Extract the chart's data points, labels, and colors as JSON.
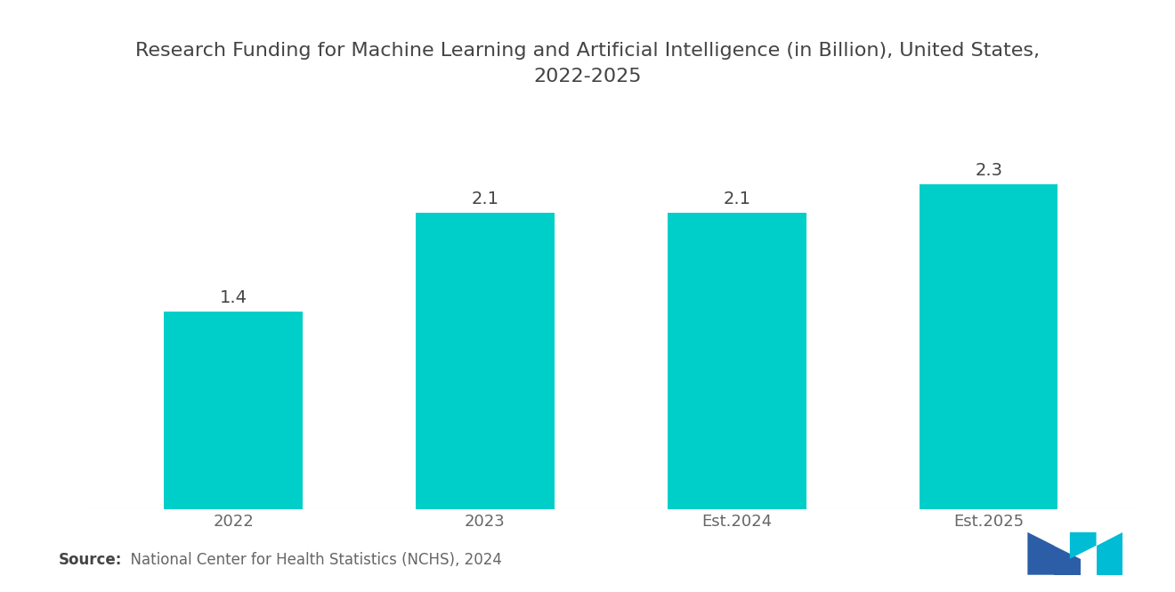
{
  "title": "Research Funding for Machine Learning and Artificial Intelligence (in Billion), United States,\n2022-2025",
  "categories": [
    "2022",
    "2023",
    "Est.2024",
    "Est.2025"
  ],
  "values": [
    1.4,
    2.1,
    2.1,
    2.3
  ],
  "bar_color": "#00CEC9",
  "background_color": "#ffffff",
  "value_labels": [
    "1.4",
    "2.1",
    "2.1",
    "2.3"
  ],
  "source_bold": "Source:",
  "source_rest": "  National Center for Health Statistics (NCHS), 2024",
  "ylim": [
    0,
    2.85
  ],
  "bar_width": 0.55,
  "title_fontsize": 16,
  "label_fontsize": 14,
  "tick_fontsize": 13,
  "source_fontsize": 12,
  "logo_colors_blue": "#2B5EA7",
  "logo_colors_teal": "#00BCD4"
}
